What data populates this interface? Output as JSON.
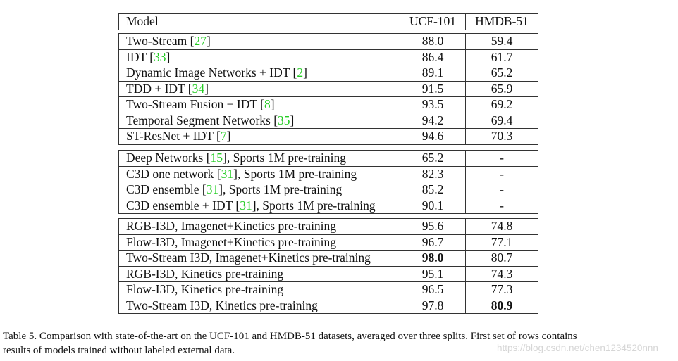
{
  "table": {
    "columns": [
      "Model",
      "UCF-101",
      "HMDB-51"
    ],
    "groups": [
      [
        {
          "pre": "Two-Stream [",
          "ref": "27",
          "post": "]",
          "ucf": "88.0",
          "hmdb": "59.4"
        },
        {
          "pre": "IDT [",
          "ref": "33",
          "post": "]",
          "ucf": "86.4",
          "hmdb": "61.7"
        },
        {
          "pre": "Dynamic Image Networks + IDT [",
          "ref": "2",
          "post": "]",
          "ucf": "89.1",
          "hmdb": "65.2"
        },
        {
          "pre": "TDD + IDT [",
          "ref": "34",
          "post": "]",
          "ucf": "91.5",
          "hmdb": "65.9"
        },
        {
          "pre": "Two-Stream Fusion + IDT [",
          "ref": "8",
          "post": "]",
          "ucf": "93.5",
          "hmdb": "69.2"
        },
        {
          "pre": "Temporal Segment Networks [",
          "ref": "35",
          "post": "]",
          "ucf": "94.2",
          "hmdb": "69.4"
        },
        {
          "pre": "ST-ResNet + IDT [",
          "ref": "7",
          "post": "]",
          "ucf": "94.6",
          "hmdb": "70.3"
        }
      ],
      [
        {
          "pre": "Deep Networks [",
          "ref": "15",
          "post": "], Sports 1M pre-training",
          "ucf": "65.2",
          "hmdb": "-"
        },
        {
          "pre": "C3D one network [",
          "ref": "31",
          "post": "], Sports 1M pre-training",
          "ucf": "82.3",
          "hmdb": "-"
        },
        {
          "pre": "C3D ensemble [",
          "ref": "31",
          "post": "], Sports 1M pre-training",
          "ucf": "85.2",
          "hmdb": "-"
        },
        {
          "pre": "C3D ensemble + IDT [",
          "ref": "31",
          "post": "], Sports 1M pre-training",
          "ucf": "90.1",
          "hmdb": "-"
        }
      ],
      [
        {
          "pre": "RGB-I3D, Imagenet+Kinetics pre-training",
          "ref": "",
          "post": "",
          "ucf": "95.6",
          "hmdb": "74.8"
        },
        {
          "pre": "Flow-I3D, Imagenet+Kinetics pre-training",
          "ref": "",
          "post": "",
          "ucf": "96.7",
          "hmdb": "77.1"
        },
        {
          "pre": "Two-Stream I3D, Imagenet+Kinetics pre-training",
          "ref": "",
          "post": "",
          "ucf": "98.0",
          "hmdb": "80.7",
          "ucf_bold": true
        },
        {
          "pre": "RGB-I3D, Kinetics pre-training",
          "ref": "",
          "post": "",
          "ucf": "95.1",
          "hmdb": "74.3"
        },
        {
          "pre": "Flow-I3D, Kinetics pre-training",
          "ref": "",
          "post": "",
          "ucf": "96.5",
          "hmdb": "77.3"
        },
        {
          "pre": "Two-Stream I3D, Kinetics pre-training",
          "ref": "",
          "post": "",
          "ucf": "97.8",
          "hmdb": "80.9",
          "hmdb_bold": true
        }
      ]
    ]
  },
  "caption": {
    "line1": "Table 5.  Comparison with state-of-the-art on the UCF-101 and HMDB-51 datasets, averaged over three splits. First set of rows contains",
    "line2": "results of models trained without labeled external data."
  },
  "watermark": "https://blog.csdn.net/chen1234520nnn",
  "colors": {
    "reference_link": "#22cc22",
    "border": "#333333",
    "text": "#111111"
  }
}
